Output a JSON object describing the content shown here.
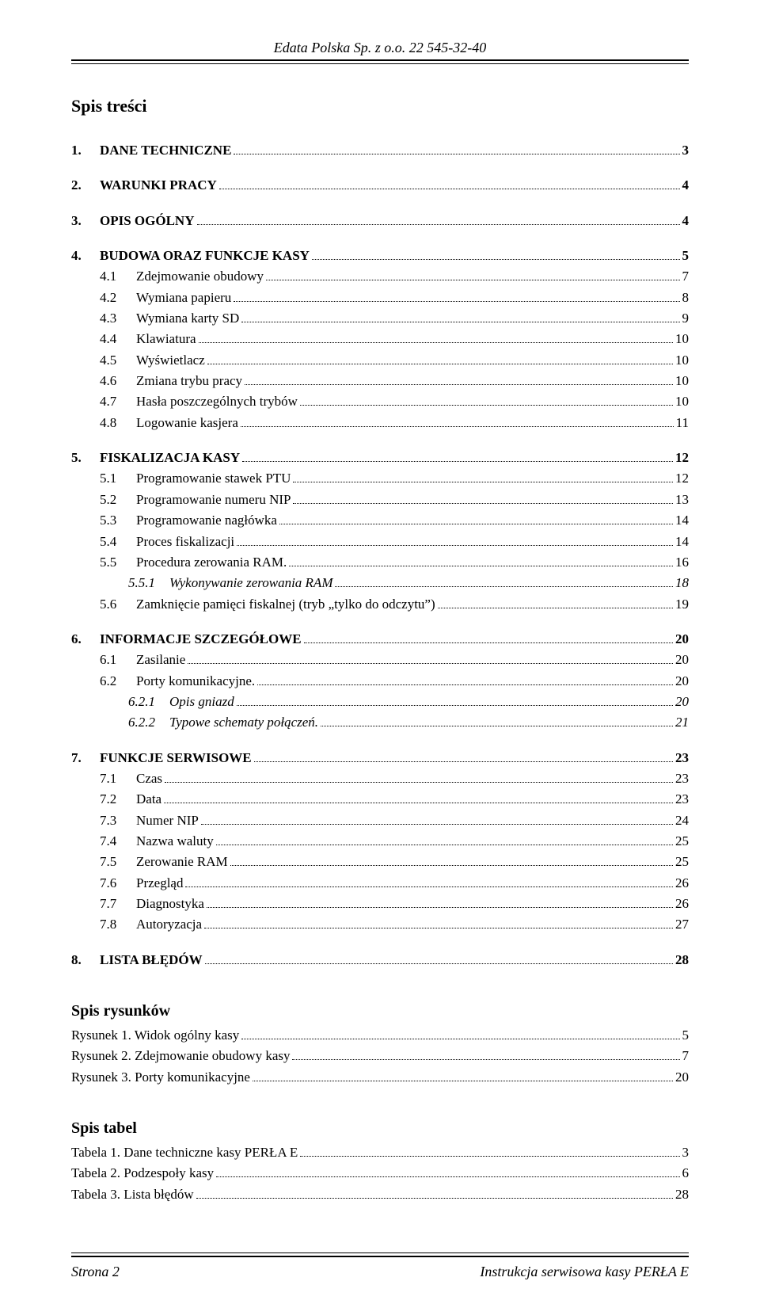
{
  "header": {
    "text": "Edata Polska Sp. z o.o. 22 545-32-40"
  },
  "footer": {
    "left": "Strona 2",
    "right": "Instrukcja serwisowa kasy PERŁA E"
  },
  "toc_title": "Spis treści",
  "toc": [
    {
      "lvl": 1,
      "num": "1.",
      "label": "DANE TECHNICZNE",
      "page": "3"
    },
    {
      "lvl": 1,
      "num": "2.",
      "label": "WARUNKI PRACY",
      "page": "4"
    },
    {
      "lvl": 1,
      "num": "3.",
      "label": "OPIS OGÓLNY",
      "page": "4"
    },
    {
      "lvl": 1,
      "num": "4.",
      "label": "BUDOWA ORAZ FUNKCJE KASY",
      "page": "5"
    },
    {
      "lvl": 2,
      "num": "4.1",
      "label": "Zdejmowanie obudowy",
      "sc": true,
      "page": "7"
    },
    {
      "lvl": 2,
      "num": "4.2",
      "label": "Wymiana papieru",
      "sc": true,
      "page": "8"
    },
    {
      "lvl": 2,
      "num": "4.3",
      "label": "Wymiana karty SD",
      "sc": true,
      "page": "9"
    },
    {
      "lvl": 2,
      "num": "4.4",
      "label": "Klawiatura",
      "sc": true,
      "page": "10"
    },
    {
      "lvl": 2,
      "num": "4.5",
      "label": "Wyświetlacz",
      "sc": true,
      "page": "10"
    },
    {
      "lvl": 2,
      "num": "4.6",
      "label": "Zmiana trybu pracy",
      "sc": true,
      "page": "10"
    },
    {
      "lvl": 2,
      "num": "4.7",
      "label": "Hasła poszczególnych trybów",
      "sc": true,
      "page": "10"
    },
    {
      "lvl": 2,
      "num": "4.8",
      "label": "Logowanie kasjera",
      "sc": true,
      "page": "11"
    },
    {
      "lvl": 1,
      "num": "5.",
      "label": "FISKALIZACJA KASY",
      "page": "12"
    },
    {
      "lvl": 2,
      "num": "5.1",
      "label": "Programowanie stawek PTU",
      "sc": true,
      "page": "12"
    },
    {
      "lvl": 2,
      "num": "5.2",
      "label": "Programowanie numeru NIP",
      "sc": true,
      "page": "13"
    },
    {
      "lvl": 2,
      "num": "5.3",
      "label": "Programowanie nagłówka",
      "sc": true,
      "page": "14"
    },
    {
      "lvl": 2,
      "num": "5.4",
      "label": "Proces fiskalizacji",
      "sc": true,
      "page": "14"
    },
    {
      "lvl": 2,
      "num": "5.5",
      "label": "Procedura zerowania RAM.",
      "sc": true,
      "page": "16"
    },
    {
      "lvl": 3,
      "num": "5.5.1",
      "label": "Wykonywanie zerowania RAM",
      "page": "18"
    },
    {
      "lvl": 2,
      "num": "5.6",
      "label": "Zamknięcie pamięci fiskalnej (tryb „tylko do odczytu”)",
      "sc": true,
      "page": "19"
    },
    {
      "lvl": 1,
      "num": "6.",
      "label": "INFORMACJE SZCZEGÓŁOWE",
      "page": "20"
    },
    {
      "lvl": 2,
      "num": "6.1",
      "label": "Zasilanie",
      "sc": true,
      "page": "20"
    },
    {
      "lvl": 2,
      "num": "6.2",
      "label": "Porty komunikacyjne.",
      "sc": true,
      "page": "20"
    },
    {
      "lvl": 3,
      "num": "6.2.1",
      "label": "Opis gniazd",
      "page": "20"
    },
    {
      "lvl": 3,
      "num": "6.2.2",
      "label": "Typowe schematy połączeń.",
      "page": "21"
    },
    {
      "lvl": 1,
      "num": "7.",
      "label": "FUNKCJE SERWISOWE",
      "page": "23"
    },
    {
      "lvl": 2,
      "num": "7.1",
      "label": "Czas",
      "sc": true,
      "page": "23"
    },
    {
      "lvl": 2,
      "num": "7.2",
      "label": "Data",
      "sc": true,
      "page": "23"
    },
    {
      "lvl": 2,
      "num": "7.3",
      "label": "Numer NIP",
      "sc": true,
      "page": "24"
    },
    {
      "lvl": 2,
      "num": "7.4",
      "label": "Nazwa waluty",
      "sc": true,
      "page": "25"
    },
    {
      "lvl": 2,
      "num": "7.5",
      "label": "Zerowanie RAM",
      "sc": true,
      "page": "25"
    },
    {
      "lvl": 2,
      "num": "7.6",
      "label": "Przegląd",
      "sc": true,
      "page": "26"
    },
    {
      "lvl": 2,
      "num": "7.7",
      "label": "Diagnostyka",
      "sc": true,
      "page": "26"
    },
    {
      "lvl": 2,
      "num": "7.8",
      "label": "Autoryzacja",
      "sc": true,
      "page": "27"
    },
    {
      "lvl": 1,
      "num": "8.",
      "label": "LISTA BŁĘDÓW",
      "page": "28"
    }
  ],
  "figures_title": "Spis rysunków",
  "figures": [
    {
      "label": "Rysunek 1. Widok ogólny kasy",
      "page": "5"
    },
    {
      "label": "Rysunek 2. Zdejmowanie obudowy kasy",
      "page": "7"
    },
    {
      "label": "Rysunek 3. Porty komunikacyjne",
      "page": "20"
    }
  ],
  "tables_title": "Spis tabel",
  "tables": [
    {
      "label": "Tabela 1. Dane techniczne kasy PERŁA E",
      "page": "3"
    },
    {
      "label": "Tabela 2. Podzespoły kasy",
      "page": "6"
    },
    {
      "label": "Tabela 3. Lista błędów",
      "page": "28"
    }
  ]
}
